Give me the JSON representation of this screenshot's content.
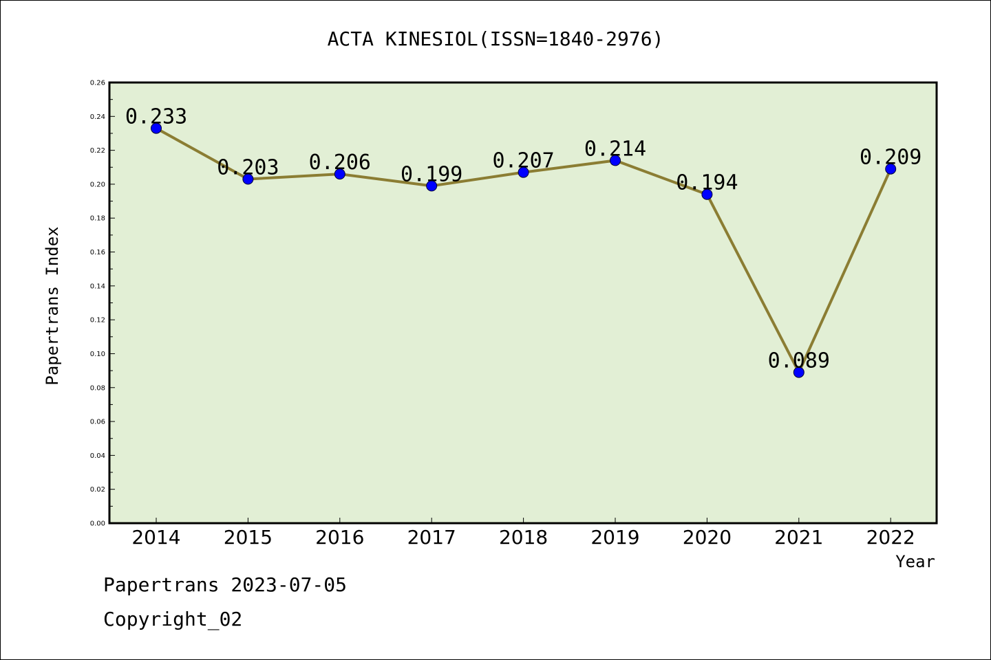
{
  "chart_data": {
    "type": "line",
    "title": "ACTA KINESIOL(ISSN=1840-2976)",
    "xlabel": "Year",
    "ylabel": "Papertrans Index",
    "categories": [
      "2014",
      "2015",
      "2016",
      "2017",
      "2018",
      "2019",
      "2020",
      "2021",
      "2022"
    ],
    "values": [
      0.233,
      0.203,
      0.206,
      0.199,
      0.207,
      0.214,
      0.194,
      0.089,
      0.209
    ],
    "data_labels": [
      "0.233",
      "0.203",
      "0.206",
      "0.199",
      "0.207",
      "0.214",
      "0.194",
      "0.089",
      "0.209"
    ],
    "ylim": [
      0,
      0.26
    ],
    "yticks": [
      "0.00",
      "0.02",
      "0.04",
      "0.06",
      "0.08",
      "0.10",
      "0.12",
      "0.14",
      "0.16",
      "0.18",
      "0.20",
      "0.22",
      "0.24",
      "0.26"
    ],
    "grid": false,
    "colors": {
      "plot_background": "#e2efd5",
      "line": "#8b7d33",
      "marker": "#0000ff"
    }
  },
  "footer": {
    "line1": "Papertrans 2023-07-05",
    "line2": "Copyright_02"
  }
}
